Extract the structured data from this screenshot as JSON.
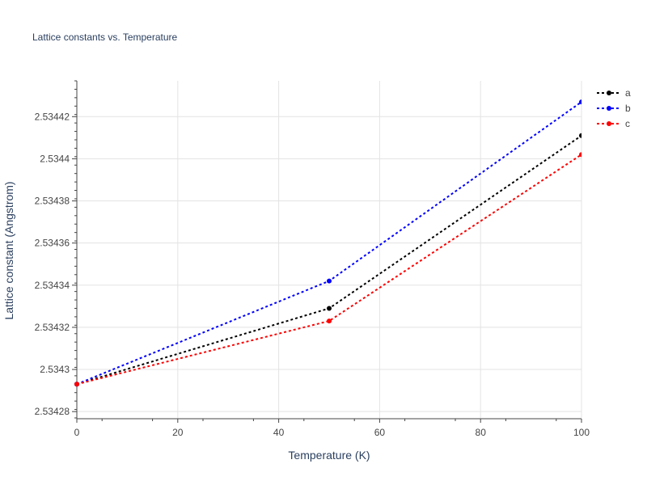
{
  "chart_data": {
    "type": "line",
    "title": "Lattice constants vs. Temperature",
    "xlabel": "Temperature (K)",
    "ylabel": "Lattice constant (Angstrom)",
    "xlim": [
      0,
      100
    ],
    "ylim": [
      2.534277,
      2.534437
    ],
    "x_ticks": [
      0,
      20,
      40,
      60,
      80,
      100
    ],
    "x_tick_labels": [
      "0",
      "20",
      "40",
      "60",
      "80",
      "100"
    ],
    "y_ticks": [
      2.53428,
      2.5343,
      2.53432,
      2.53434,
      2.53436,
      2.53438,
      2.5344,
      2.53442
    ],
    "y_tick_labels": [
      "2.53428",
      "2.5343",
      "2.53432",
      "2.53434",
      "2.53436",
      "2.53438",
      "2.5344",
      "2.53442"
    ],
    "grid": true,
    "legend_position": "top-right",
    "x": [
      0,
      50,
      100
    ],
    "series": [
      {
        "name": "a",
        "color": "#000000",
        "values": [
          2.534293,
          2.534329,
          2.534411
        ]
      },
      {
        "name": "b",
        "color": "#0000ff",
        "values": [
          2.534293,
          2.534342,
          2.534427
        ]
      },
      {
        "name": "c",
        "color": "#ff0000",
        "values": [
          2.534293,
          2.534323,
          2.534402
        ]
      }
    ]
  }
}
